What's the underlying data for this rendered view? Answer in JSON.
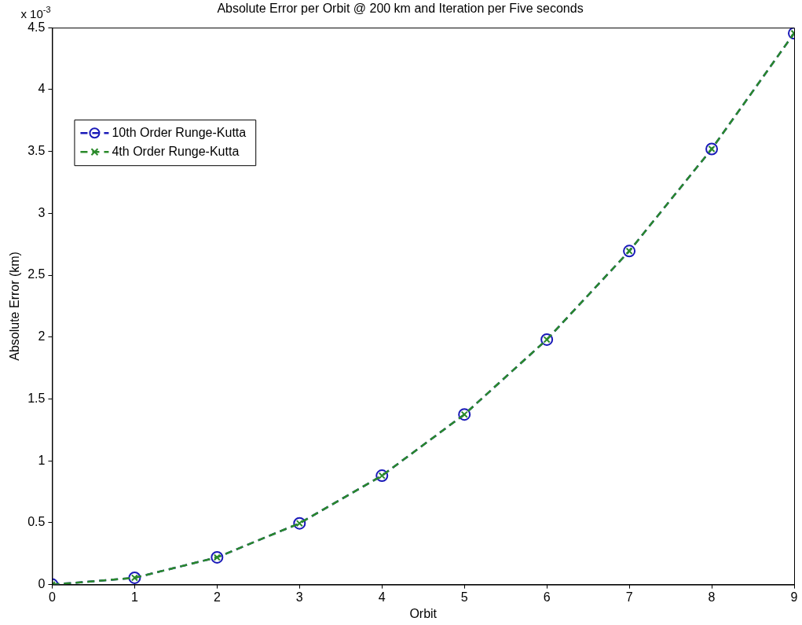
{
  "chart_data": {
    "type": "line",
    "title": "Absolute Error per Orbit @ 200 km and Iteration per Five seconds",
    "xlabel": "Orbit",
    "ylabel": "Absolute Error (km)",
    "annotations": [
      "x 10$^{-3}$"
    ],
    "x": [
      0,
      1,
      2,
      3,
      4,
      5,
      6,
      7,
      8,
      9
    ],
    "series": [
      {
        "name": "10th Order Runge-Kutta",
        "color": "#1a1ab8",
        "marker": "circle",
        "values": [
          0,
          0.055,
          0.22,
          0.495,
          0.88,
          1.375,
          1.98,
          2.695,
          3.52,
          4.455
        ]
      },
      {
        "name": "4th Order Runge-Kutta",
        "color": "#2a8a2a",
        "marker": "cross",
        "values": [
          0,
          0.055,
          0.22,
          0.495,
          0.88,
          1.375,
          1.98,
          2.695,
          3.52,
          4.455
        ]
      }
    ],
    "xlim": [
      0,
      9
    ],
    "xticks": [
      0,
      1,
      2,
      3,
      4,
      5,
      6,
      7,
      8,
      9
    ],
    "ylim": [
      0,
      4.5
    ],
    "yticks": [
      0,
      0.5,
      1,
      1.5,
      2,
      2.5,
      3,
      3.5,
      4,
      4.5
    ],
    "grid": false,
    "legend": "top left",
    "line_style": "dashed"
  }
}
